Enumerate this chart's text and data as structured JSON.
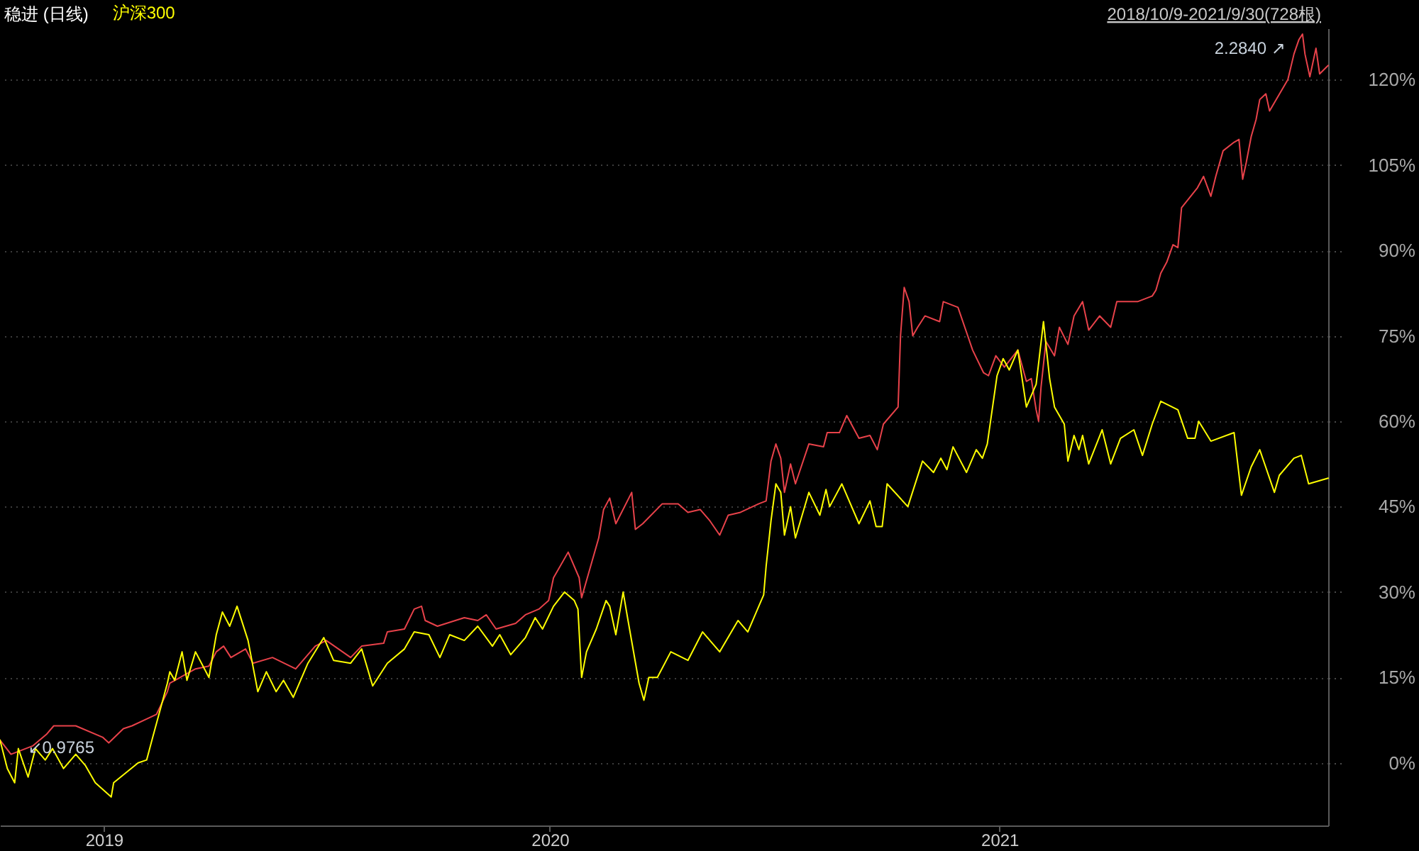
{
  "chart_data": {
    "type": "line",
    "title": "稳进 (日线)",
    "series": [
      {
        "color": "#e8424a",
        "x": [
          "2018-10-09",
          "2018-10-18",
          "2018-11-05",
          "2018-11-16",
          "2018-11-22",
          "2018-12-10",
          "2019-01-01",
          "2019-01-06",
          "2019-01-18",
          "2019-01-25",
          "2019-02-14",
          "2019-02-23",
          "2019-02-25",
          "2019-03-18",
          "2019-03-29",
          "2019-04-04",
          "2019-04-10",
          "2019-04-16",
          "2019-04-28",
          "2019-05-04",
          "2019-05-20",
          "2019-06-08",
          "2019-06-24",
          "2019-07-03",
          "2019-07-23",
          "2019-08-01",
          "2019-08-19",
          "2019-08-22",
          "2019-09-05",
          "2019-09-13",
          "2019-09-19",
          "2019-09-22",
          "2019-10-02",
          "2019-10-24",
          "2019-11-04",
          "2019-11-11",
          "2019-11-19",
          "2019-12-05",
          "2019-12-13",
          "2019-12-24",
          "2020-01-01",
          "2020-01-05",
          "2020-01-17",
          "2020-01-26",
          "2020-01-28",
          "2020-02-01",
          "2020-02-11",
          "2020-02-15",
          "2020-02-20",
          "2020-02-25",
          "2020-03-09",
          "2020-03-12",
          "2020-03-18",
          "2020-04-03",
          "2020-04-16",
          "2020-04-24",
          "2020-05-04",
          "2020-05-12",
          "2020-05-20",
          "2020-05-27",
          "2020-06-06",
          "2020-06-21",
          "2020-06-27",
          "2020-07-01",
          "2020-07-05",
          "2020-07-09",
          "2020-07-12",
          "2020-07-17",
          "2020-07-21",
          "2020-08-01",
          "2020-08-13",
          "2020-08-16",
          "2020-08-26",
          "2020-09-01",
          "2020-09-11",
          "2020-09-20",
          "2020-09-26",
          "2020-10-01",
          "2020-10-13",
          "2020-10-15",
          "2020-10-18",
          "2020-10-22",
          "2020-10-25",
          "2020-10-29",
          "2020-11-04",
          "2020-11-16",
          "2020-11-19",
          "2020-12-01",
          "2020-12-09",
          "2020-12-13",
          "2020-12-22",
          "2020-12-26",
          "2021-01-01",
          "2021-01-08",
          "2021-01-19",
          "2021-01-26",
          "2021-01-30",
          "2021-02-03",
          "2021-02-05",
          "2021-02-07",
          "2021-02-11",
          "2021-02-18",
          "2021-02-22",
          "2021-03-01",
          "2021-03-06",
          "2021-03-13",
          "2021-03-18",
          "2021-03-27",
          "2021-04-05",
          "2021-04-10",
          "2021-04-16",
          "2021-04-27",
          "2021-05-09",
          "2021-05-12",
          "2021-05-16",
          "2021-05-21",
          "2021-05-26",
          "2021-05-30",
          "2021-06-02",
          "2021-06-15",
          "2021-06-20",
          "2021-06-26",
          "2021-06-30",
          "2021-07-06",
          "2021-07-15",
          "2021-07-19",
          "2021-07-22",
          "2021-07-25",
          "2021-07-29",
          "2021-08-02",
          "2021-08-05",
          "2021-08-10",
          "2021-08-13",
          "2021-08-28",
          "2021-09-02",
          "2021-09-06",
          "2021-09-09",
          "2021-09-11",
          "2021-09-15",
          "2021-09-20",
          "2021-09-23",
          "2021-09-30"
        ],
        "values": [
          4,
          1.5,
          3,
          5,
          6.5,
          6.5,
          4.5,
          3.5,
          6,
          6.5,
          8.5,
          12.5,
          14,
          16.5,
          17,
          19.5,
          20.5,
          18.5,
          20,
          17.5,
          18.5,
          16.5,
          20.5,
          21.5,
          18.5,
          20.5,
          21,
          23,
          23.5,
          27,
          27.5,
          25,
          24,
          25.5,
          25,
          26,
          23.5,
          24.5,
          26,
          27,
          28.5,
          32.5,
          37,
          32.5,
          29,
          32,
          39.5,
          44.5,
          46.5,
          42,
          47.5,
          41,
          42,
          45.5,
          45.5,
          44,
          44.5,
          42.5,
          40,
          43.5,
          44,
          45.5,
          46,
          53,
          56,
          53.5,
          47.5,
          52.5,
          49,
          56,
          55.5,
          58,
          58,
          61,
          57,
          57.5,
          55,
          59.5,
          62.5,
          75,
          83.5,
          81,
          75,
          76.5,
          78.5,
          77.5,
          81,
          80,
          75,
          72.5,
          68.5,
          68,
          71.5,
          69.5,
          72.5,
          67,
          67.5,
          62,
          60,
          66,
          74,
          71.5,
          76.5,
          73.5,
          78.5,
          81,
          76,
          78.5,
          76.5,
          81,
          81,
          81,
          82,
          83,
          86,
          88,
          91,
          90.5,
          97.5,
          101,
          103,
          99.5,
          103,
          107.5,
          109,
          109.5,
          102.5,
          105.5,
          110,
          113,
          116.5,
          117.5,
          114.5,
          120,
          124.5,
          127,
          128,
          124.5,
          120.5,
          125.5,
          121,
          122.5
        ]
      },
      {
        "name": "沪深300",
        "color": "#ffff00",
        "x": [
          "2018-10-09",
          "2018-10-15",
          "2018-10-21",
          "2018-10-24",
          "2018-11-01",
          "2018-11-07",
          "2018-11-15",
          "2018-11-21",
          "2018-11-30",
          "2018-12-10",
          "2018-12-18",
          "2018-12-26",
          "2019-01-08",
          "2019-01-10",
          "2019-01-30",
          "2019-02-06",
          "2019-02-11",
          "2019-02-23",
          "2019-02-25",
          "2019-03-01",
          "2019-03-07",
          "2019-03-11",
          "2019-03-18",
          "2019-03-29",
          "2019-04-04",
          "2019-04-09",
          "2019-04-15",
          "2019-04-21",
          "2019-04-30",
          "2019-05-08",
          "2019-05-15",
          "2019-05-23",
          "2019-05-29",
          "2019-06-06",
          "2019-06-18",
          "2019-07-01",
          "2019-07-09",
          "2019-07-23",
          "2019-08-01",
          "2019-08-10",
          "2019-08-22",
          "2019-09-05",
          "2019-09-13",
          "2019-09-25",
          "2019-10-04",
          "2019-10-12",
          "2019-10-24",
          "2019-11-04",
          "2019-11-16",
          "2019-11-22",
          "2019-12-01",
          "2019-12-13",
          "2019-12-21",
          "2019-12-27",
          "2020-01-05",
          "2020-01-14",
          "2020-01-22",
          "2020-01-25",
          "2020-01-28",
          "2020-02-01",
          "2020-02-09",
          "2020-02-17",
          "2020-02-20",
          "2020-02-25",
          "2020-03-02",
          "2020-03-06",
          "2020-03-15",
          "2020-03-19",
          "2020-03-23",
          "2020-03-30",
          "2020-04-10",
          "2020-04-24",
          "2020-05-06",
          "2020-05-20",
          "2020-06-04",
          "2020-06-12",
          "2020-06-21",
          "2020-06-25",
          "2020-06-27",
          "2020-07-01",
          "2020-07-05",
          "2020-07-09",
          "2020-07-12",
          "2020-07-17",
          "2020-07-21",
          "2020-08-01",
          "2020-08-10",
          "2020-08-15",
          "2020-08-18",
          "2020-08-28",
          "2020-09-11",
          "2020-09-20",
          "2020-09-25",
          "2020-09-30",
          "2020-10-04",
          "2020-10-21",
          "2020-11-02",
          "2020-11-11",
          "2020-11-17",
          "2020-11-22",
          "2020-11-27",
          "2020-12-08",
          "2020-12-16",
          "2020-12-21",
          "2020-12-25",
          "2020-12-30",
          "2021-01-02",
          "2021-01-07",
          "2021-01-12",
          "2021-01-19",
          "2021-01-26",
          "2021-02-03",
          "2021-02-09",
          "2021-02-14",
          "2021-02-18",
          "2021-02-26",
          "2021-03-01",
          "2021-03-06",
          "2021-03-10",
          "2021-03-13",
          "2021-03-18",
          "2021-03-29",
          "2021-04-05",
          "2021-04-13",
          "2021-04-24",
          "2021-05-01",
          "2021-05-09",
          "2021-05-16",
          "2021-05-30",
          "2021-06-07",
          "2021-06-13",
          "2021-06-16",
          "2021-06-26",
          "2021-07-15",
          "2021-07-21",
          "2021-07-29",
          "2021-08-05",
          "2021-08-17",
          "2021-08-21",
          "2021-09-02",
          "2021-09-08",
          "2021-09-14",
          "2021-09-30"
        ],
        "values": [
          4,
          -1,
          -3.5,
          2.5,
          -2.5,
          2.5,
          0.5,
          2.5,
          -1,
          1.5,
          -0.5,
          -3.5,
          -6,
          -3.5,
          0,
          0.5,
          4.5,
          14,
          16,
          14.5,
          19.5,
          14.5,
          19.5,
          15,
          22.5,
          26.5,
          24,
          27.5,
          21.5,
          12.5,
          16,
          12.5,
          14.5,
          11.5,
          17.5,
          22,
          18,
          17.5,
          20,
          13.5,
          17.5,
          20,
          23,
          22.5,
          18.5,
          22.5,
          21.5,
          24,
          20.5,
          22.5,
          19,
          22,
          25.5,
          23.5,
          27.5,
          30,
          28.5,
          27,
          15,
          19.5,
          23.5,
          28.5,
          27.5,
          22.5,
          30,
          25,
          14,
          11,
          15,
          15,
          19.5,
          18,
          23,
          19.5,
          25,
          23,
          27.5,
          29.5,
          34.5,
          42.5,
          49,
          47.5,
          40,
          45,
          39.5,
          47.5,
          43.5,
          48,
          45,
          49,
          42,
          46,
          41.5,
          41.5,
          49,
          45,
          53,
          51,
          53.5,
          51.5,
          55.5,
          51,
          55,
          53.5,
          56,
          63.5,
          68,
          71,
          69,
          72.5,
          62.5,
          66.5,
          77.5,
          67.5,
          62.5,
          59.5,
          53,
          57.5,
          55,
          57.5,
          52.5,
          58.5,
          52.5,
          57,
          58.5,
          54,
          59.5,
          63.5,
          62,
          57,
          57,
          60,
          56.5,
          58,
          47,
          52,
          55,
          47.5,
          50.5,
          53.5,
          54,
          49,
          50
        ]
      }
    ],
    "xlim": [
      "2018-10-09",
      "2021-09-30"
    ],
    "xticks": [
      {
        "value": "2019-01-02",
        "label": "2019"
      },
      {
        "value": "2020-01-02",
        "label": "2020"
      },
      {
        "value": "2021-01-04",
        "label": "2021"
      }
    ],
    "ylim": [
      -11,
      129
    ],
    "yticks": [
      {
        "value": 0,
        "label": "0%"
      },
      {
        "value": 15,
        "label": "15%"
      },
      {
        "value": 30,
        "label": "30%"
      },
      {
        "value": 45,
        "label": "45%"
      },
      {
        "value": 60,
        "label": "60%"
      },
      {
        "value": 75,
        "label": "75%"
      },
      {
        "value": 90,
        "label": "90%"
      },
      {
        "value": 105,
        "label": "105%"
      },
      {
        "value": 120,
        "label": "120%"
      }
    ],
    "grid": "y",
    "legend": "top left",
    "annotations": [
      {
        "text": "2.2840 ↗",
        "x": "2021-09-09",
        "y": 128
      },
      {
        "text": "↙0.9765",
        "x": "2018-10-18",
        "y": 1.5
      },
      "2018/10/9-2021/9/30(728根)"
    ]
  }
}
